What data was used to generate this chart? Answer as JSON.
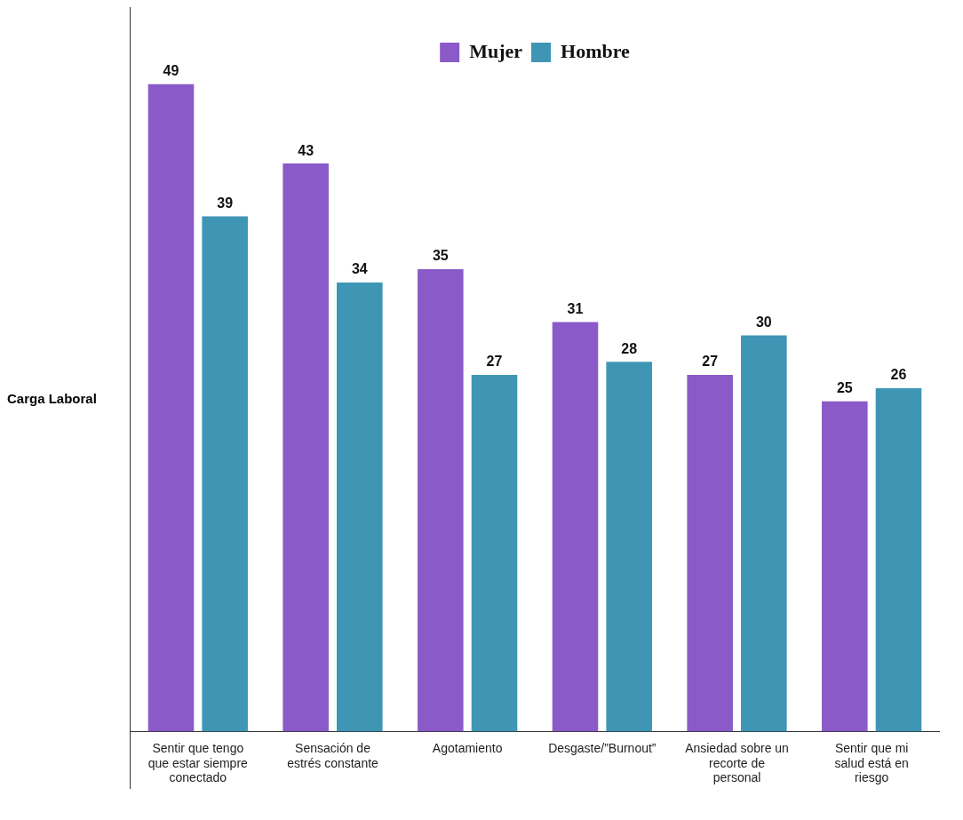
{
  "chart_data": {
    "type": "bar",
    "categories": [
      "Sentir que tengo que estar siempre conectado",
      "Sensación de estrés constante",
      "Agotamiento",
      "Desgaste/”Burnout”",
      "Ansiedad sobre un recorte de personal",
      "Sentir que mi salud está en riesgo"
    ],
    "series": [
      {
        "name": "Mujer",
        "color": "#8a5ac8",
        "values": [
          49,
          43,
          35,
          31,
          27,
          25
        ]
      },
      {
        "name": "Hombre",
        "color": "#3e96b4",
        "values": [
          39,
          34,
          27,
          28,
          30,
          26
        ]
      }
    ],
    "data_labels": true,
    "legend": "top",
    "grid": false,
    "annotations": [
      "Carga Laboral"
    ]
  }
}
